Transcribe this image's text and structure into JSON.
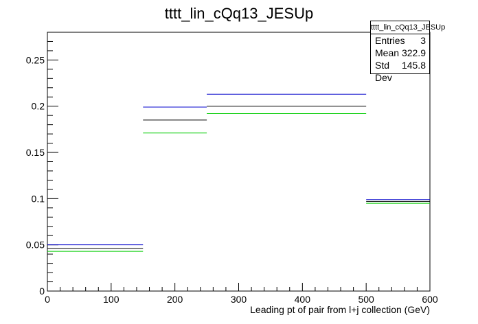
{
  "chart_data": {
    "type": "histogram",
    "title": "tttt_lin_cQq13_JESUp",
    "xlabel": "Leading pt of pair from l+j collection (GeV)",
    "ylabel": "",
    "xlim": [
      0,
      600
    ],
    "ylim": [
      0,
      0.28
    ],
    "x_ticks": [
      0,
      100,
      200,
      300,
      400,
      500,
      600
    ],
    "x_tick_labels": [
      "0",
      "100",
      "200",
      "300",
      "400",
      "500",
      "600"
    ],
    "y_ticks": [
      0,
      0.05,
      0.1,
      0.15,
      0.2,
      0.25
    ],
    "y_tick_labels": [
      "0",
      "0.05",
      "0.1",
      "0.15",
      "0.2",
      "0.25"
    ],
    "bin_edges": [
      0,
      150,
      250,
      500,
      600
    ],
    "series": [
      {
        "color": "#0000cc",
        "values": [
          0.05,
          0.199,
          0.213,
          0.099
        ]
      },
      {
        "color": "#000000",
        "values": [
          0.046,
          0.185,
          0.2,
          0.097
        ]
      },
      {
        "color": "#00cc00",
        "values": [
          0.043,
          0.171,
          0.192,
          0.095
        ]
      }
    ],
    "grid": false
  },
  "stats": {
    "title": "tttt_lin_cQq13_JESUp",
    "entries_label": "Entries",
    "entries_value": "3",
    "mean_label": "Mean",
    "mean_value": "322.9",
    "stddev_label": "Std Dev",
    "stddev_value": "145.8"
  }
}
